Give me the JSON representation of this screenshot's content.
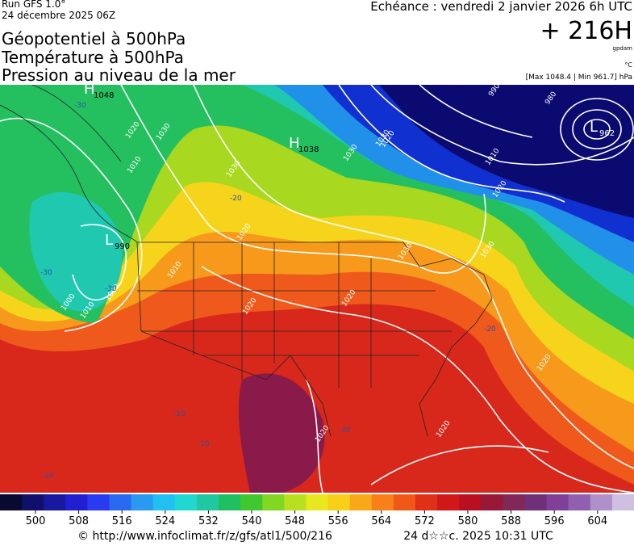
{
  "header": {
    "run": "Run GFS 1.0°",
    "date": "24 décembre 2025 06Z",
    "titles": [
      "Géopotentiel à 500hPa",
      "Température à 500hPa",
      "Pression au niveau de la mer"
    ],
    "echeance": "Echéance : vendredi 2 janvier 2026 6h UTC",
    "lead": "+ 216H",
    "unit": "gpdam",
    "temp_unit": "°C",
    "range": "[Max 1048.4 | Min 961.7] hPa"
  },
  "map": {
    "centers": [
      {
        "letter": "H",
        "value": "1048"
      },
      {
        "letter": "H",
        "value": "1038"
      },
      {
        "letter": "L",
        "value": "990"
      },
      {
        "letter": "L",
        "value": "962"
      }
    ],
    "isobar_labels": [
      "1020",
      "1030",
      "1010",
      "1030",
      "1020",
      "1030",
      "1020",
      "1010",
      "1020",
      "1000",
      "990",
      "980",
      "1010",
      "1020",
      "1030",
      "1030",
      "1020",
      "1020",
      "1020",
      "1020",
      "1000",
      "1010",
      "1030"
    ],
    "temp_labels": [
      "-30",
      "-20",
      "-30",
      "-30",
      "-20",
      "-10",
      "-10",
      "-10",
      "-10"
    ]
  },
  "colorbar": {
    "ticks": [
      500,
      508,
      516,
      524,
      532,
      540,
      548,
      556,
      564,
      572,
      580,
      588,
      596,
      604
    ]
  },
  "footer": {
    "url": "© http://www.infoclimat.fr/z/gfs/atl1/500/216",
    "timestamp": "24 d☆☆c. 2025 10:31 UTC"
  }
}
